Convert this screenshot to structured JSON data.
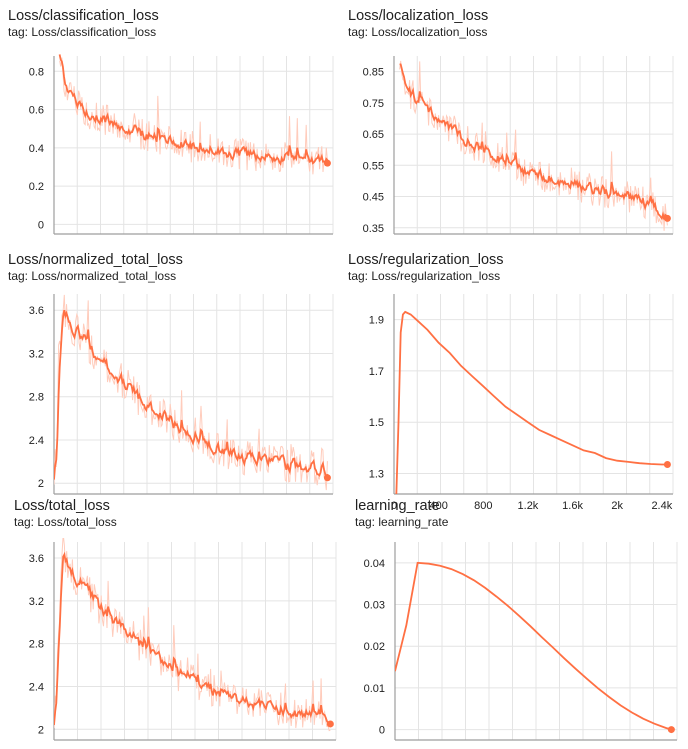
{
  "colors": {
    "series": "#ff7043",
    "raw": "#ffccbc",
    "grid": "#e4e4e4",
    "axis": "#9e9e9e"
  },
  "charts": [
    {
      "title": "Loss/classification_loss",
      "tag": "tag: Loss/classification_loss"
    },
    {
      "title": "Loss/localization_loss",
      "tag": "tag: Loss/localization_loss"
    },
    {
      "title": "Loss/normalized_total_loss",
      "tag": "tag: Loss/normalized_total_loss"
    },
    {
      "title": "Loss/regularization_loss",
      "tag": "tag: Loss/regularization_loss"
    },
    {
      "title": "Loss/total_loss",
      "tag": "tag: Loss/total_loss"
    },
    {
      "title": "learning_rate",
      "tag": "tag: learning_rate"
    }
  ],
  "chart_data": [
    {
      "type": "line",
      "title": "Loss/classification_loss",
      "xlim": [
        0,
        2500
      ],
      "ylim": [
        -0.05,
        0.88
      ],
      "yticks": [
        0,
        0.2,
        0.4,
        0.6,
        0.8
      ],
      "ytick_labels": [
        "0",
        "0.2",
        "0.4",
        "0.6",
        "0.8"
      ],
      "noisy": true,
      "series": [
        {
          "x": [
            50,
            100,
            150,
            250,
            400,
            600,
            800,
            1000,
            1200,
            1400,
            1600,
            1800,
            2000,
            2200,
            2350,
            2450
          ],
          "y": [
            0.9,
            0.74,
            0.66,
            0.6,
            0.56,
            0.51,
            0.47,
            0.44,
            0.41,
            0.39,
            0.37,
            0.36,
            0.35,
            0.34,
            0.33,
            0.32
          ]
        }
      ]
    },
    {
      "type": "line",
      "title": "Loss/localization_loss",
      "xlim": [
        0,
        2500
      ],
      "ylim": [
        0.33,
        0.9
      ],
      "yticks": [
        0.35,
        0.45,
        0.55,
        0.65,
        0.75,
        0.85
      ],
      "ytick_labels": [
        "0.35",
        "0.45",
        "0.55",
        "0.65",
        "0.75",
        "0.85"
      ],
      "noisy": true,
      "series": [
        {
          "x": [
            50,
            100,
            150,
            250,
            400,
            600,
            800,
            1000,
            1200,
            1400,
            1600,
            1800,
            2000,
            2200,
            2350,
            2450
          ],
          "y": [
            0.88,
            0.82,
            0.78,
            0.74,
            0.7,
            0.64,
            0.6,
            0.56,
            0.53,
            0.51,
            0.49,
            0.47,
            0.46,
            0.44,
            0.41,
            0.38
          ]
        }
      ]
    },
    {
      "type": "line",
      "title": "Loss/normalized_total_loss",
      "xlim": [
        0,
        2500
      ],
      "ylim": [
        1.9,
        3.75
      ],
      "yticks": [
        2,
        2.4,
        2.8,
        3.2,
        3.6
      ],
      "ytick_labels": [
        "2",
        "2.4",
        "2.8",
        "3.2",
        "3.6"
      ],
      "noisy": true,
      "series": [
        {
          "x": [
            0,
            20,
            40,
            60,
            80,
            100,
            150,
            250,
            400,
            600,
            800,
            1000,
            1200,
            1400,
            1600,
            1800,
            2000,
            2200,
            2350,
            2450
          ],
          "y": [
            2.05,
            2.3,
            2.9,
            3.4,
            3.7,
            3.6,
            3.45,
            3.35,
            3.15,
            2.95,
            2.75,
            2.6,
            2.45,
            2.35,
            2.27,
            2.22,
            2.18,
            2.15,
            2.13,
            2.05
          ]
        }
      ]
    },
    {
      "type": "line",
      "title": "Loss/regularization_loss",
      "xlim": [
        0,
        2500
      ],
      "ylim": [
        1.22,
        2.0
      ],
      "yticks": [
        1.3,
        1.5,
        1.7,
        1.9
      ],
      "ytick_labels": [
        "1.3",
        "1.5",
        "1.7",
        "1.9"
      ],
      "xticks": [
        0,
        400,
        800,
        1200,
        1600,
        2000,
        2400
      ],
      "xtick_labels": [
        "0",
        "400",
        "800",
        "1.2k",
        "1.6k",
        "2k",
        "2.4k"
      ],
      "noisy": false,
      "series": [
        {
          "x": [
            20,
            40,
            60,
            80,
            100,
            150,
            200,
            300,
            400,
            500,
            600,
            700,
            800,
            900,
            1000,
            1100,
            1200,
            1300,
            1400,
            1500,
            1600,
            1700,
            1800,
            1900,
            2000,
            2100,
            2200,
            2300,
            2400,
            2450
          ],
          "y": [
            1.2,
            1.5,
            1.85,
            1.92,
            1.93,
            1.92,
            1.9,
            1.86,
            1.81,
            1.77,
            1.72,
            1.68,
            1.64,
            1.6,
            1.56,
            1.53,
            1.5,
            1.47,
            1.45,
            1.43,
            1.41,
            1.39,
            1.38,
            1.36,
            1.35,
            1.345,
            1.34,
            1.337,
            1.335,
            1.335
          ]
        }
      ]
    },
    {
      "type": "line",
      "title": "Loss/total_loss",
      "xlim": [
        0,
        2500
      ],
      "ylim": [
        1.9,
        3.75
      ],
      "yticks": [
        2,
        2.4,
        2.8,
        3.2,
        3.6
      ],
      "ytick_labels": [
        "2",
        "2.4",
        "2.8",
        "3.2",
        "3.6"
      ],
      "noisy": true,
      "series": [
        {
          "x": [
            0,
            20,
            40,
            60,
            80,
            100,
            150,
            250,
            400,
            600,
            800,
            1000,
            1200,
            1400,
            1600,
            1800,
            2000,
            2200,
            2350,
            2450
          ],
          "y": [
            2.05,
            2.3,
            2.9,
            3.4,
            3.7,
            3.6,
            3.45,
            3.35,
            3.15,
            2.95,
            2.75,
            2.6,
            2.45,
            2.35,
            2.27,
            2.22,
            2.18,
            2.15,
            2.13,
            2.05
          ]
        }
      ]
    },
    {
      "type": "line",
      "title": "learning_rate",
      "xlim": [
        0,
        2500
      ],
      "ylim": [
        -0.0025,
        0.045
      ],
      "yticks": [
        0,
        0.01,
        0.02,
        0.03,
        0.04
      ],
      "ytick_labels": [
        "0",
        "0.01",
        "0.02",
        "0.03",
        "0.04"
      ],
      "noisy": false,
      "series": [
        {
          "x": [
            0,
            100,
            200,
            300,
            400,
            500,
            600,
            700,
            800,
            900,
            1000,
            1100,
            1200,
            1300,
            1400,
            1500,
            1600,
            1700,
            1800,
            1900,
            2000,
            2100,
            2200,
            2300,
            2400,
            2450
          ],
          "y": [
            0.014,
            0.025,
            0.04,
            0.0398,
            0.0393,
            0.0385,
            0.0373,
            0.0358,
            0.034,
            0.0319,
            0.0297,
            0.0273,
            0.0248,
            0.0222,
            0.0197,
            0.0171,
            0.0146,
            0.0122,
            0.0099,
            0.0078,
            0.0058,
            0.0041,
            0.0026,
            0.0014,
            0.0004,
            0.0
          ]
        }
      ]
    }
  ]
}
